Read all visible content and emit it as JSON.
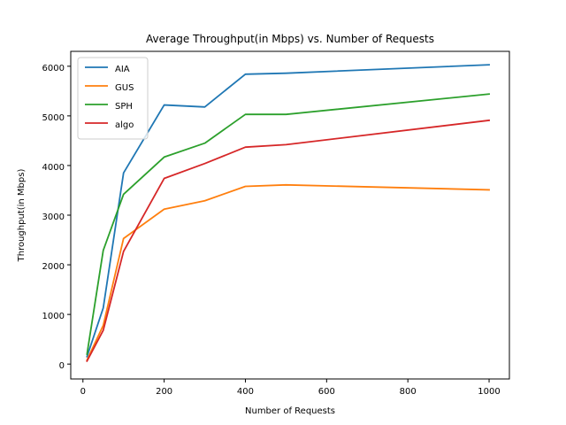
{
  "chart_data": {
    "type": "line",
    "title": "Average Throughput(in Mbps) vs. Number of Requests",
    "xlabel": "Number of Requests",
    "ylabel": "Throughput(in Mbps)",
    "xlim": [
      -30,
      1050
    ],
    "ylim": [
      -300,
      6300
    ],
    "xticks": [
      0,
      200,
      400,
      600,
      800,
      1000
    ],
    "yticks": [
      0,
      1000,
      2000,
      3000,
      4000,
      5000,
      6000
    ],
    "grid": false,
    "legend_position": "top-left",
    "x": [
      10,
      50,
      100,
      200,
      300,
      400,
      500,
      1000
    ],
    "series": [
      {
        "name": "AIA",
        "color": "#1f77b4",
        "values": [
          150,
          1130,
          3850,
          5220,
          5180,
          5840,
          5860,
          6030
        ]
      },
      {
        "name": "GUS",
        "color": "#ff7f0e",
        "values": [
          80,
          780,
          2530,
          3120,
          3290,
          3580,
          3610,
          3510
        ]
      },
      {
        "name": "SPH",
        "color": "#2ca02c",
        "values": [
          200,
          2290,
          3420,
          4170,
          4450,
          5030,
          5030,
          5440
        ]
      },
      {
        "name": "algo",
        "color": "#d62728",
        "values": [
          60,
          680,
          2270,
          3740,
          4040,
          4370,
          4420,
          4910
        ]
      }
    ]
  }
}
